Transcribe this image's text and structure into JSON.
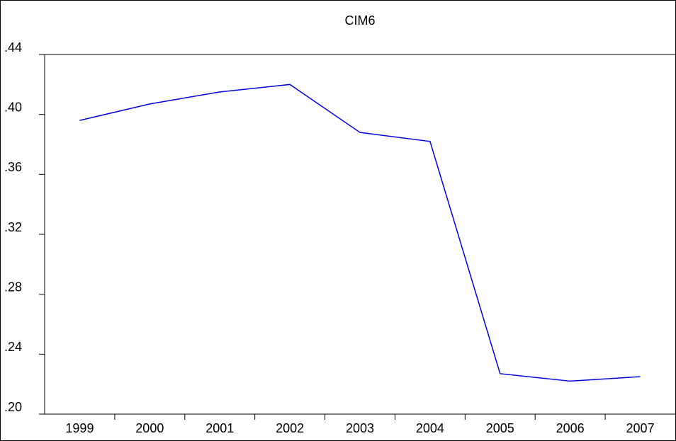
{
  "chart_data": {
    "type": "line",
    "title": "CIM6",
    "categories": [
      "1999",
      "2000",
      "2001",
      "2002",
      "2003",
      "2004",
      "2005",
      "2006",
      "2007"
    ],
    "values": [
      0.396,
      0.407,
      0.415,
      0.42,
      0.388,
      0.382,
      0.227,
      0.222,
      0.225
    ],
    "color": "#0000dd",
    "ylim": [
      0.2,
      0.44
    ],
    "yticks": [
      {
        "value": 0.2,
        "label": ".20"
      },
      {
        "value": 0.24,
        "label": ".24"
      },
      {
        "value": 0.28,
        "label": ".28"
      },
      {
        "value": 0.32,
        "label": ".32"
      },
      {
        "value": 0.36,
        "label": ".36"
      },
      {
        "value": 0.4,
        "label": ".40"
      },
      {
        "value": 0.44,
        "label": ".44"
      }
    ],
    "grid": false
  }
}
